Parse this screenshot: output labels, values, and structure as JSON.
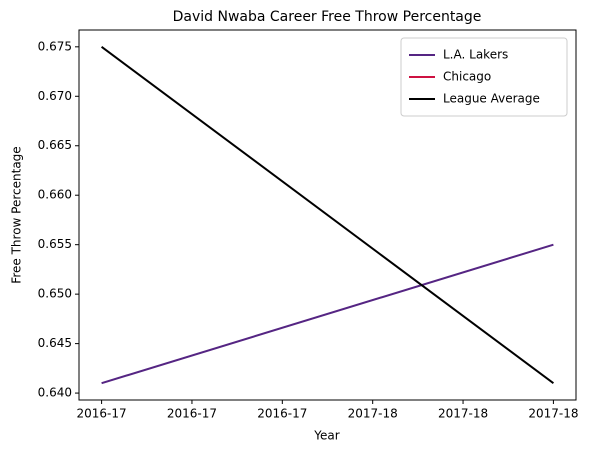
{
  "chart_data": {
    "type": "line",
    "title": "David Nwaba Career Free Throw Percentage",
    "x_label": "Year",
    "y_label": "Free Throw Percentage",
    "x": [
      0,
      1
    ],
    "series": [
      {
        "name": "L.A. Lakers",
        "color": "#552583",
        "values": [
          0.641,
          0.655
        ]
      },
      {
        "name": "Chicago",
        "color": "#ce1141",
        "values": [
          null,
          null
        ]
      },
      {
        "name": "League Average",
        "color": "#000000",
        "values": [
          0.675,
          0.641
        ]
      }
    ],
    "xlim": [
      -0.05,
      1.05
    ],
    "xticks": [
      {
        "value": 0,
        "label": "2016-17"
      },
      {
        "value": 0.2,
        "label": "2016-17"
      },
      {
        "value": 0.4,
        "label": "2016-17"
      },
      {
        "value": 0.6,
        "label": "2017-18"
      },
      {
        "value": 0.8,
        "label": "2017-18"
      },
      {
        "value": 1,
        "label": "2017-18"
      }
    ],
    "ylim": [
      0.6393,
      0.6767
    ],
    "yticks": [
      {
        "value": 0.64,
        "label": "0.640"
      },
      0.645,
      {
        "value": 0.65,
        "label": "0.650"
      },
      0.655,
      {
        "value": 0.66,
        "label": "0.660"
      },
      0.665,
      {
        "value": 0.67,
        "label": "0.670"
      },
      0.675
    ],
    "legend": "upper right"
  }
}
